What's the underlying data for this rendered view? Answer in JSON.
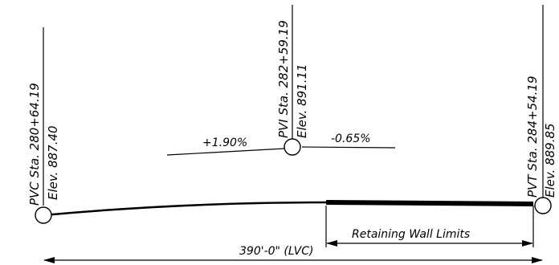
{
  "points": {
    "pvc": {
      "station": "PVC Sta. 280+64.19",
      "elevation": "Elev. 887.40"
    },
    "pvi": {
      "station": "PVI Sta. 282+59.19",
      "elevation": "Elev. 891.11"
    },
    "pvt": {
      "station": "PVT Sta. 284+54.19",
      "elevation": "Elev. 889.85"
    }
  },
  "grades": {
    "incoming": "+1.90%",
    "outgoing": "-0.65%"
  },
  "dimensions": {
    "retaining_wall": "Retaining Wall Limits",
    "curve_length": "390'-0\" (LVC)"
  },
  "colors": {
    "line": "#000000",
    "background": "#ffffff"
  }
}
